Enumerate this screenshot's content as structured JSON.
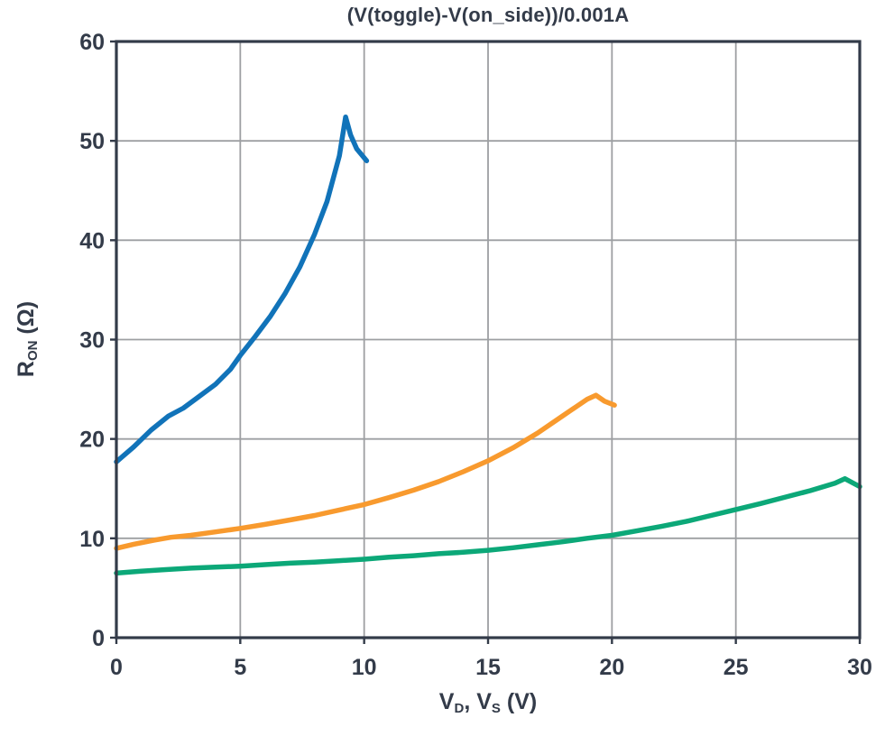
{
  "chart_data": {
    "type": "line",
    "title": "(V(toggle)-V(on_side))/0.001A",
    "xlabel_segments": [
      {
        "t": "V",
        "sub": false
      },
      {
        "t": "D",
        "sub": true
      },
      {
        "t": ", V",
        "sub": false
      },
      {
        "t": "S",
        "sub": true
      },
      {
        "t": " (V)",
        "sub": false
      }
    ],
    "ylabel_segments": [
      {
        "t": "R",
        "sub": false
      },
      {
        "t": "ON",
        "sub": true
      },
      {
        "t": " (Ω)",
        "sub": false
      }
    ],
    "xlim": [
      0,
      30
    ],
    "ylim": [
      0,
      60
    ],
    "xticks": [
      0,
      5,
      10,
      15,
      20,
      25,
      30
    ],
    "yticks": [
      0,
      10,
      20,
      30,
      40,
      50,
      60
    ],
    "grid": true,
    "legend": "none",
    "colors": {
      "frame": "#333b49",
      "grid": "#9d9fa2",
      "text": "#333b49",
      "background": "#ffffff"
    },
    "series": [
      {
        "name": "blue-curve",
        "color": "#1173b9",
        "points": [
          [
            0,
            17.7
          ],
          [
            0.7,
            19.2
          ],
          [
            1.4,
            20.9
          ],
          [
            2.1,
            22.3
          ],
          [
            2.7,
            23.1
          ],
          [
            3.3,
            24.2
          ],
          [
            4,
            25.5
          ],
          [
            4.6,
            27.0
          ],
          [
            5,
            28.4
          ],
          [
            5.6,
            30.3
          ],
          [
            6.2,
            32.3
          ],
          [
            6.8,
            34.6
          ],
          [
            7.4,
            37.3
          ],
          [
            8,
            40.6
          ],
          [
            8.5,
            43.9
          ],
          [
            9,
            48.5
          ],
          [
            9.25,
            52.4
          ],
          [
            9.45,
            50.6
          ],
          [
            9.7,
            49.2
          ],
          [
            10.1,
            48.0
          ]
        ]
      },
      {
        "name": "orange-curve",
        "color": "#f89a2e",
        "points": [
          [
            0,
            9.0
          ],
          [
            0.7,
            9.4
          ],
          [
            1.5,
            9.8
          ],
          [
            2.2,
            10.1
          ],
          [
            3,
            10.3
          ],
          [
            4,
            10.65
          ],
          [
            5,
            11.0
          ],
          [
            6,
            11.4
          ],
          [
            7,
            11.85
          ],
          [
            8,
            12.3
          ],
          [
            9,
            12.85
          ],
          [
            10,
            13.4
          ],
          [
            11,
            14.1
          ],
          [
            12,
            14.85
          ],
          [
            13,
            15.7
          ],
          [
            14,
            16.7
          ],
          [
            15,
            17.8
          ],
          [
            16,
            19.1
          ],
          [
            17,
            20.6
          ],
          [
            18,
            22.3
          ],
          [
            19,
            24.0
          ],
          [
            19.35,
            24.4
          ],
          [
            19.7,
            23.8
          ],
          [
            20.1,
            23.4
          ]
        ]
      },
      {
        "name": "green-curve",
        "color": "#0ca878",
        "points": [
          [
            0,
            6.5
          ],
          [
            1,
            6.7
          ],
          [
            2,
            6.85
          ],
          [
            3,
            7.0
          ],
          [
            4,
            7.1
          ],
          [
            5,
            7.2
          ],
          [
            6,
            7.35
          ],
          [
            7,
            7.5
          ],
          [
            8,
            7.6
          ],
          [
            9,
            7.75
          ],
          [
            10,
            7.9
          ],
          [
            11,
            8.1
          ],
          [
            12,
            8.25
          ],
          [
            13,
            8.45
          ],
          [
            14,
            8.6
          ],
          [
            15,
            8.8
          ],
          [
            16,
            9.05
          ],
          [
            17,
            9.35
          ],
          [
            18,
            9.65
          ],
          [
            19,
            10.0
          ],
          [
            20,
            10.3
          ],
          [
            21,
            10.75
          ],
          [
            22,
            11.2
          ],
          [
            23,
            11.7
          ],
          [
            24,
            12.3
          ],
          [
            25,
            12.9
          ],
          [
            26,
            13.5
          ],
          [
            27,
            14.15
          ],
          [
            28,
            14.8
          ],
          [
            29,
            15.55
          ],
          [
            29.4,
            16.0
          ],
          [
            30,
            15.2
          ]
        ]
      }
    ]
  }
}
